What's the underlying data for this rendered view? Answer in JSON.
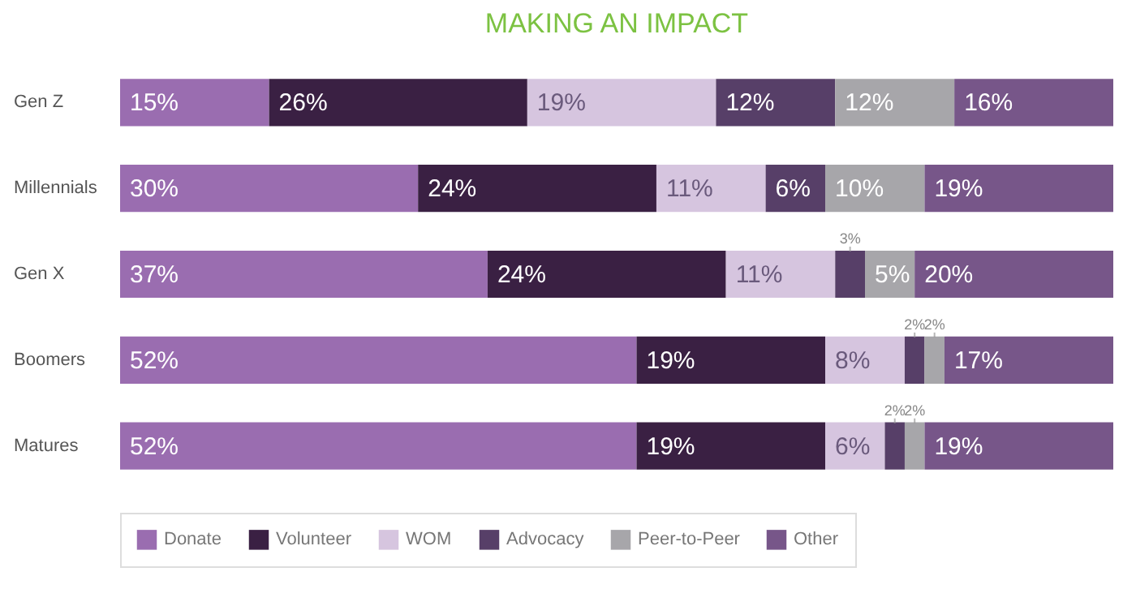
{
  "chart_data": {
    "type": "bar",
    "title": "MAKING AN IMPACT",
    "orientation": "horizontal",
    "stacked": true,
    "categories": [
      "Gen Z",
      "Millennials",
      "Gen X",
      "Boomers",
      "Matures"
    ],
    "xlim": [
      0,
      100
    ],
    "tick_labels": "y",
    "legend": "bottom",
    "series": [
      {
        "name": "Donate",
        "color": "#9a6db0",
        "values": [
          15,
          30,
          37,
          52,
          52
        ],
        "value_labels": [
          "15%",
          "30%",
          "37%",
          "52%",
          "52%"
        ]
      },
      {
        "name": "Volunteer",
        "color": "#3a2043",
        "values": [
          26,
          24,
          24,
          19,
          19
        ],
        "value_labels": [
          "26%",
          "24%",
          "24%",
          "19%",
          "19%"
        ]
      },
      {
        "name": "WOM",
        "color": "#d6c5df",
        "values": [
          19,
          11,
          11,
          8,
          6
        ],
        "value_labels": [
          "19%",
          "11%",
          "11%",
          "8%",
          "6%"
        ]
      },
      {
        "name": "Advocacy",
        "color": "#573f68",
        "values": [
          12,
          6,
          3,
          2,
          2
        ],
        "value_labels": [
          "12%",
          "6%",
          "3%",
          "2%",
          "2%"
        ]
      },
      {
        "name": "Peer-to-Peer",
        "color": "#a7a6aa",
        "values": [
          12,
          10,
          5,
          2,
          2
        ],
        "value_labels": [
          "12%",
          "10%",
          "5%",
          "2%",
          "2%"
        ]
      },
      {
        "name": "Other",
        "color": "#775689",
        "values": [
          16,
          19,
          20,
          17,
          19
        ],
        "value_labels": [
          "16%",
          "19%",
          "20%",
          "17%",
          "19%"
        ]
      }
    ]
  }
}
